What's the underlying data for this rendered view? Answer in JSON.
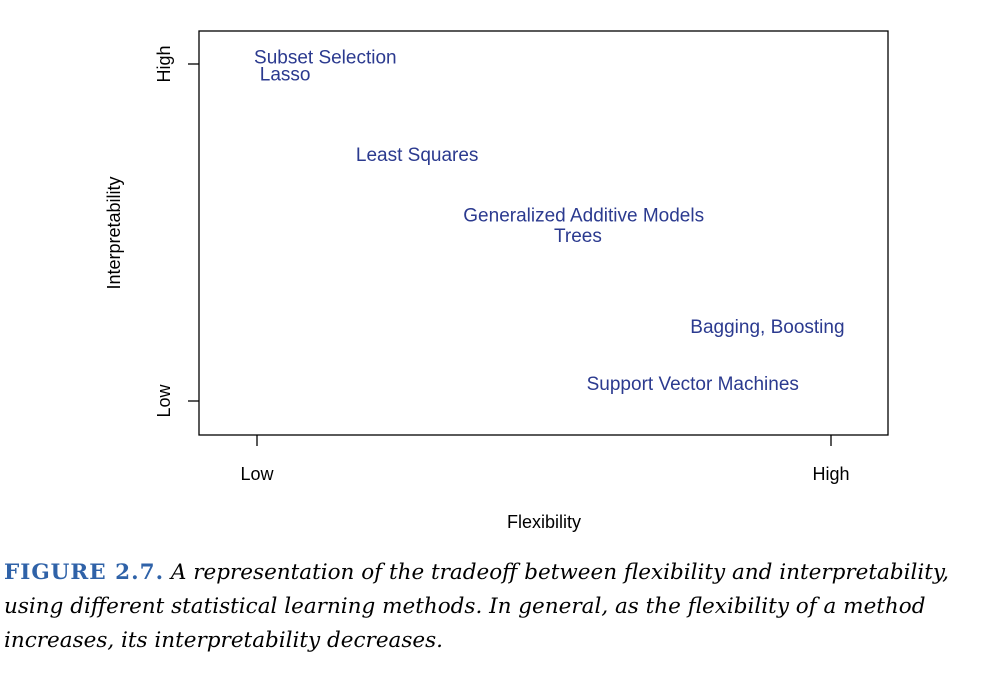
{
  "chart_data": {
    "type": "scatter",
    "xlabel": "Flexibility",
    "ylabel": "Interpretability",
    "x_ticks": [
      "Low",
      "High"
    ],
    "y_ticks": [
      "Low",
      "High"
    ],
    "xlim": [
      -0.1,
      1.1
    ],
    "ylim": [
      -0.1,
      1.1
    ],
    "grid": false,
    "label_color": "#2b3a8f",
    "points": [
      {
        "label": "Subset Selection",
        "x": 0.12,
        "y": 1.02
      },
      {
        "label": "Lasso",
        "x": 0.05,
        "y": 0.97
      },
      {
        "label": "Least Squares",
        "x": 0.28,
        "y": 0.73
      },
      {
        "label": "Generalized Additive Models",
        "x": 0.57,
        "y": 0.55
      },
      {
        "label": "Trees",
        "x": 0.56,
        "y": 0.49
      },
      {
        "label": "Bagging, Boosting",
        "x": 0.89,
        "y": 0.22
      },
      {
        "label": "Support Vector Machines",
        "x": 0.76,
        "y": 0.05
      }
    ]
  },
  "caption": {
    "number": "FIGURE 2.7.",
    "text": "A representation of the tradeoff between flexibility and interpretability, using different statistical learning methods. In general, as the flexibility of a method increases, its interpretability decreases."
  }
}
